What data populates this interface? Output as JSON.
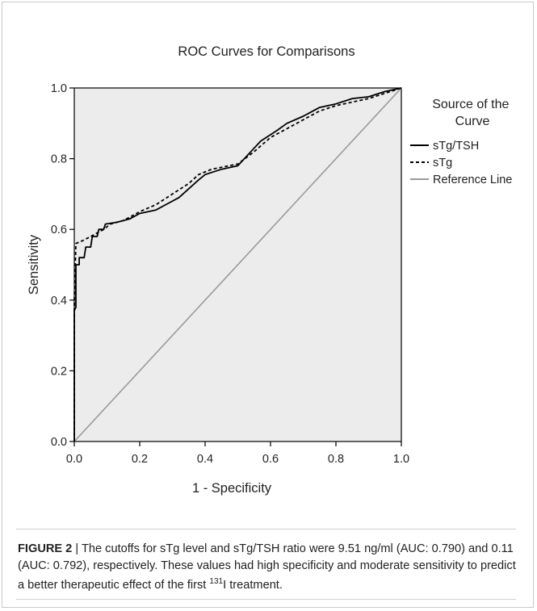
{
  "chart_data": {
    "type": "line",
    "title": "ROC Curves for Comparisons",
    "xlabel": "1 - Specificity",
    "ylabel": "Sensitivity",
    "xlim": [
      0,
      1
    ],
    "ylim": [
      0,
      1
    ],
    "x_ticks": [
      "0.0",
      "0.2",
      "0.4",
      "0.6",
      "0.8",
      "1.0"
    ],
    "y_ticks": [
      "0.0",
      "0.2",
      "0.4",
      "0.6",
      "0.8",
      "1.0"
    ],
    "legend_title": "Source of the Curve",
    "legend_position": "right",
    "series": [
      {
        "name": "sTg/TSH",
        "style": "solid",
        "color": "#000000",
        "points": [
          [
            0,
            0
          ],
          [
            0,
            0.37
          ],
          [
            0.005,
            0.38
          ],
          [
            0.005,
            0.5
          ],
          [
            0.015,
            0.5
          ],
          [
            0.015,
            0.52
          ],
          [
            0.03,
            0.52
          ],
          [
            0.035,
            0.55
          ],
          [
            0.05,
            0.55
          ],
          [
            0.055,
            0.58
          ],
          [
            0.07,
            0.58
          ],
          [
            0.075,
            0.6
          ],
          [
            0.09,
            0.6
          ],
          [
            0.095,
            0.615
          ],
          [
            0.13,
            0.62
          ],
          [
            0.17,
            0.63
          ],
          [
            0.2,
            0.645
          ],
          [
            0.25,
            0.655
          ],
          [
            0.28,
            0.67
          ],
          [
            0.32,
            0.69
          ],
          [
            0.35,
            0.715
          ],
          [
            0.38,
            0.74
          ],
          [
            0.4,
            0.755
          ],
          [
            0.45,
            0.77
          ],
          [
            0.5,
            0.78
          ],
          [
            0.54,
            0.82
          ],
          [
            0.57,
            0.85
          ],
          [
            0.62,
            0.88
          ],
          [
            0.65,
            0.9
          ],
          [
            0.7,
            0.92
          ],
          [
            0.75,
            0.945
          ],
          [
            0.8,
            0.955
          ],
          [
            0.85,
            0.97
          ],
          [
            0.9,
            0.975
          ],
          [
            0.95,
            0.99
          ],
          [
            1,
            1
          ]
        ]
      },
      {
        "name": "sTg",
        "style": "dashed",
        "color": "#000000",
        "points": [
          [
            0,
            0
          ],
          [
            0,
            0.4
          ],
          [
            0.005,
            0.56
          ],
          [
            0.03,
            0.57
          ],
          [
            0.06,
            0.585
          ],
          [
            0.09,
            0.6
          ],
          [
            0.11,
            0.615
          ],
          [
            0.15,
            0.625
          ],
          [
            0.2,
            0.65
          ],
          [
            0.25,
            0.67
          ],
          [
            0.3,
            0.7
          ],
          [
            0.35,
            0.73
          ],
          [
            0.38,
            0.755
          ],
          [
            0.42,
            0.77
          ],
          [
            0.5,
            0.785
          ],
          [
            0.55,
            0.82
          ],
          [
            0.6,
            0.86
          ],
          [
            0.65,
            0.885
          ],
          [
            0.7,
            0.91
          ],
          [
            0.75,
            0.935
          ],
          [
            0.8,
            0.95
          ],
          [
            0.85,
            0.96
          ],
          [
            0.9,
            0.97
          ],
          [
            0.95,
            0.985
          ],
          [
            1,
            1
          ]
        ]
      },
      {
        "name": "Reference Line",
        "style": "solid",
        "color": "#9a9a9a",
        "points": [
          [
            0,
            0
          ],
          [
            1,
            1
          ]
        ]
      }
    ]
  },
  "caption": {
    "figure_label": "FIGURE 2",
    "separator": " | ",
    "text_before": "The cutoffs for sTg level and sTg/TSH ratio were 9.51 ng/ml (AUC: 0.790) and 0.11 (AUC: 0.792), respectively. These values had high specificity and moderate sensitivity to predict a better therapeutic effect of the first ",
    "superscript": "131",
    "text_after": "I treatment."
  },
  "colors": {
    "plot_background": "#ececec",
    "axis": "#000000",
    "reference_line": "#9a9a9a"
  }
}
